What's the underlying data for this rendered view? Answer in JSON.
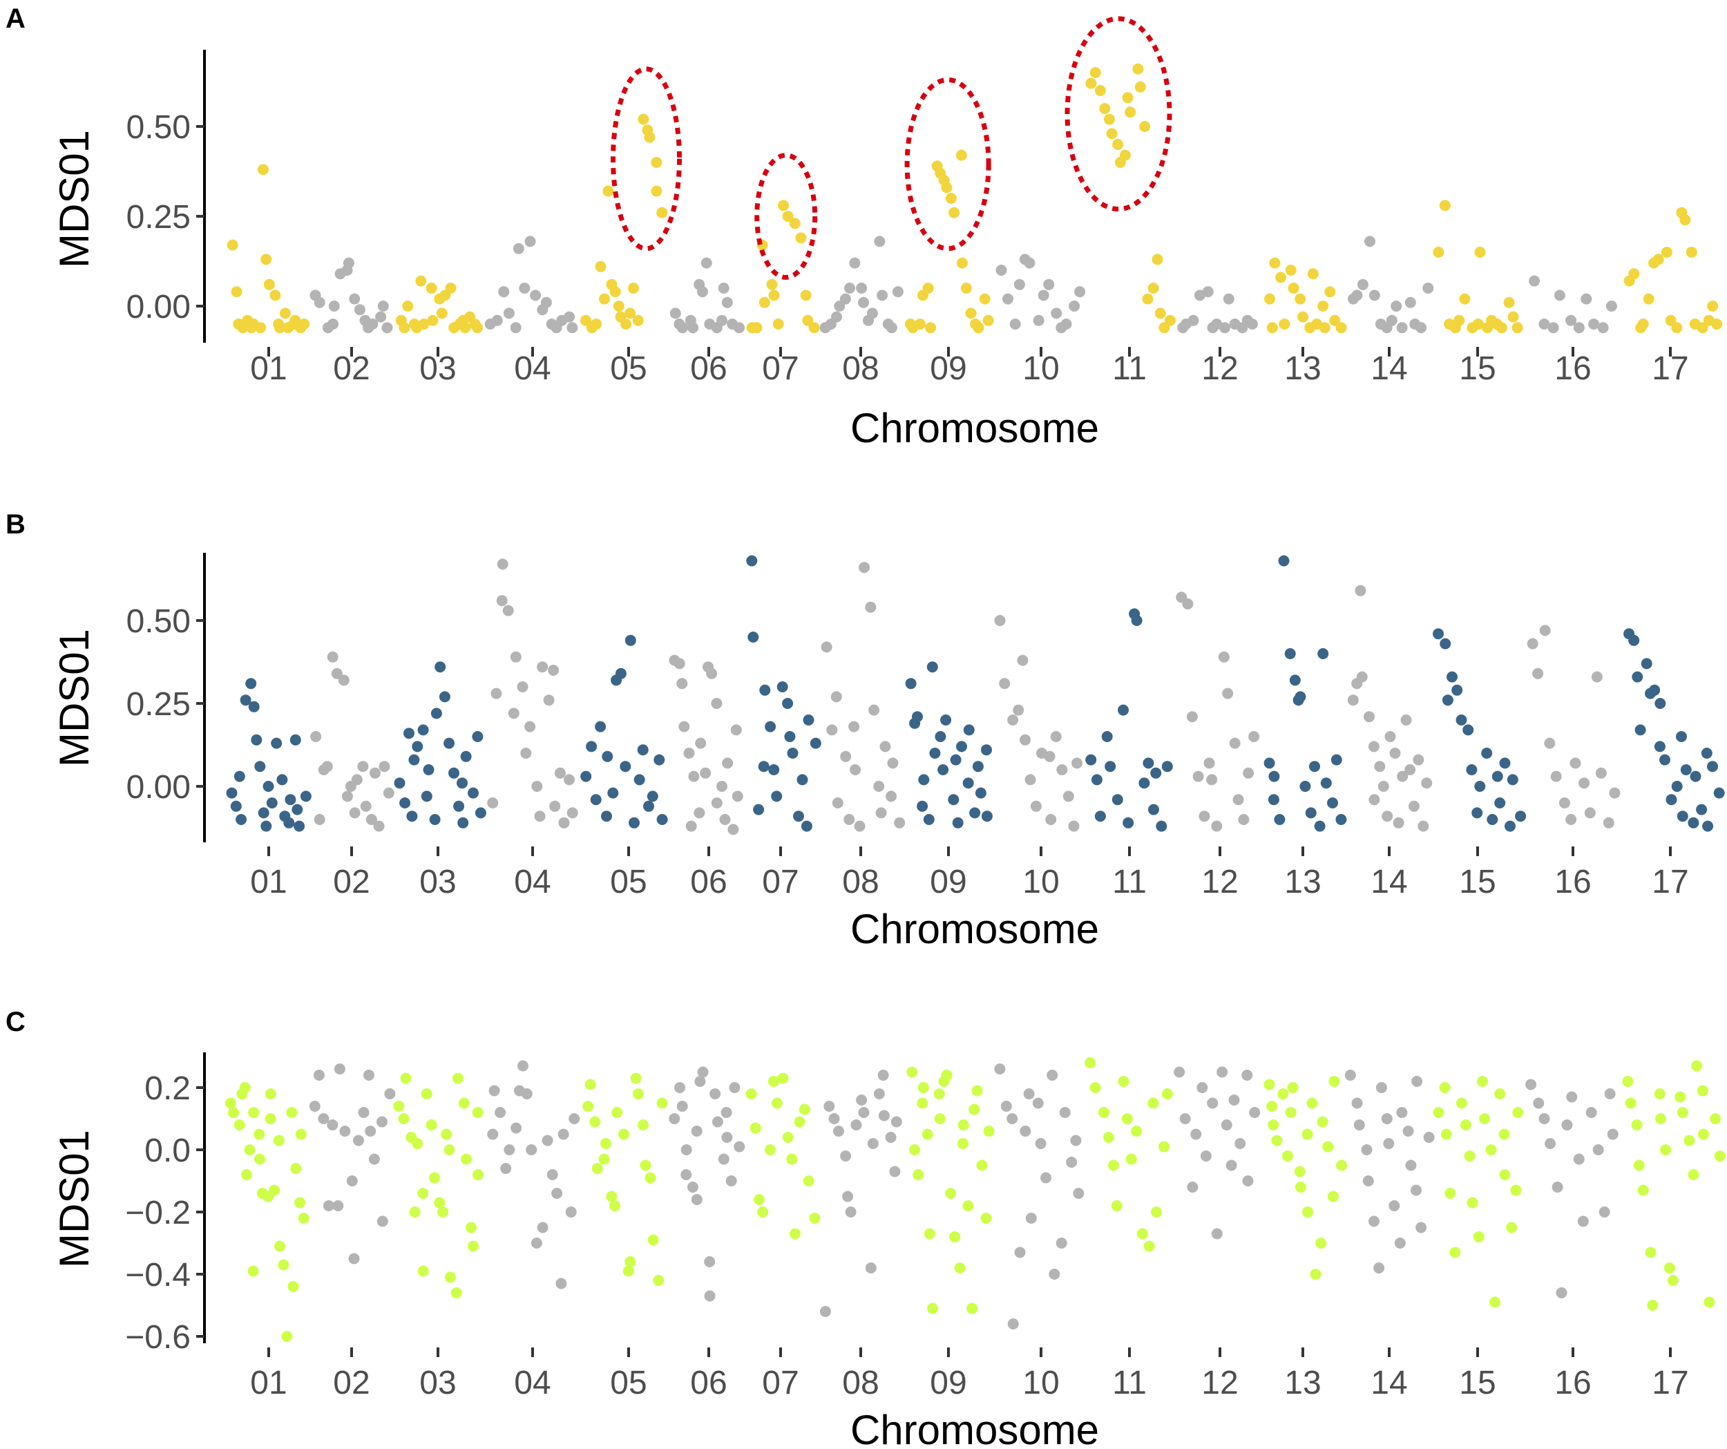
{
  "chart_data": [
    {
      "type": "scatter",
      "panel_label": "A",
      "xlabel": "Chromosome",
      "ylabel": "MDS01",
      "x_categories": [
        "01",
        "02",
        "03",
        "04",
        "05",
        "06",
        "07",
        "08",
        "09",
        "10",
        "11",
        "12",
        "13",
        "14",
        "15",
        "16",
        "17"
      ],
      "yticks": [
        {
          "value": 0.5,
          "label": "0.50"
        },
        {
          "value": 0.25,
          "label": "0.25"
        },
        {
          "value": 0,
          "label": "0.00"
        }
      ],
      "ylim": [
        -0.1,
        0.71
      ],
      "colors": {
        "odd": "#f2d53c",
        "even": "#b3b3b3",
        "annotation": "#d7000f"
      },
      "annotations": [
        {
          "type": "dotted-ellipse",
          "chromosome": "05",
          "ymin": 0.16,
          "ymax": 0.66
        },
        {
          "type": "dotted-ellipse",
          "chromosome": "07",
          "ymin": 0.08,
          "ymax": 0.42
        },
        {
          "type": "dotted-ellipse",
          "chromosome": "09",
          "ymin": 0.16,
          "ymax": 0.63
        },
        {
          "type": "dotted-ellipse",
          "chromosome": "11",
          "ymin": 0.27,
          "ymax": 0.8
        }
      ],
      "values": [
        [
          0.17,
          0.04,
          -0.05,
          -0.06,
          -0.04,
          -0.06,
          -0.05,
          -0.06,
          0.38,
          0.13,
          0.06,
          0.03,
          -0.05,
          -0.06,
          -0.02,
          -0.06,
          -0.05,
          -0.04,
          -0.06,
          -0.05
        ],
        [
          0.03,
          0.01,
          -0.06,
          -0.05,
          0.0,
          0.09,
          0.1,
          0.12,
          0.02,
          -0.01,
          -0.04,
          -0.06,
          -0.05,
          -0.03,
          0.0,
          -0.06
        ],
        [
          -0.04,
          -0.06,
          0.0,
          -0.05,
          -0.06,
          0.07,
          -0.05,
          0.05,
          -0.04,
          0.02,
          -0.02,
          0.03,
          0.05,
          -0.06,
          -0.05,
          -0.04,
          -0.06,
          -0.03,
          -0.05,
          -0.06
        ],
        [
          -0.05,
          -0.04,
          0.04,
          -0.02,
          -0.06,
          0.16,
          0.05,
          0.18,
          0.03,
          -0.01,
          0.01,
          -0.05,
          -0.06,
          -0.04,
          -0.03,
          -0.06
        ],
        [
          -0.04,
          -0.06,
          -0.05,
          0.11,
          0.02,
          0.32,
          0.06,
          0.04,
          0.0,
          -0.03,
          -0.05,
          -0.02,
          0.05,
          -0.04,
          0.52,
          0.49,
          0.47,
          0.4,
          0.32,
          0.26
        ],
        [
          -0.02,
          -0.05,
          -0.06,
          -0.04,
          -0.06,
          0.06,
          0.04,
          0.12,
          -0.05,
          -0.06,
          -0.04,
          0.05,
          0.01,
          -0.05,
          -0.06
        ],
        [
          -0.06,
          -0.06,
          0.17,
          0.01,
          0.06,
          0.03,
          -0.05,
          0.28,
          0.25,
          0.23,
          0.19,
          0.03,
          -0.04,
          -0.06
        ],
        [
          -0.06,
          -0.05,
          -0.03,
          0.0,
          0.02,
          0.05,
          0.12,
          0.05,
          0.01,
          -0.04,
          -0.02,
          0.18,
          0.03,
          -0.05,
          -0.06,
          0.04
        ],
        [
          -0.05,
          -0.06,
          -0.05,
          0.03,
          0.05,
          -0.06,
          0.39,
          0.37,
          0.35,
          0.33,
          0.3,
          0.26,
          0.42,
          0.12,
          0.05,
          -0.02,
          -0.05,
          -0.06,
          0.02,
          -0.04
        ],
        [
          0.1,
          0.02,
          -0.05,
          0.06,
          0.13,
          0.12,
          -0.04,
          0.03,
          0.06,
          -0.02,
          -0.06,
          -0.05,
          0.0,
          0.04
        ],
        [
          0.62,
          0.65,
          0.6,
          0.55,
          0.52,
          0.48,
          0.45,
          0.4,
          0.42,
          0.58,
          0.54,
          0.66,
          0.61,
          0.5,
          0.02,
          0.05,
          0.13,
          -0.02,
          -0.06,
          -0.04
        ],
        [
          -0.06,
          -0.05,
          -0.04,
          0.03,
          0.04,
          -0.06,
          -0.05,
          -0.06,
          0.02,
          -0.05,
          -0.06,
          -0.04,
          -0.05
        ],
        [
          0.02,
          -0.06,
          0.12,
          0.08,
          -0.05,
          0.1,
          0.05,
          0.02,
          -0.03,
          -0.06,
          0.09,
          -0.05,
          0.0,
          -0.06,
          0.04,
          -0.04,
          -0.06
        ],
        [
          0.02,
          0.03,
          0.06,
          0.18,
          0.03,
          -0.05,
          -0.06,
          -0.04,
          0.0,
          -0.06,
          0.01,
          -0.05,
          -0.06,
          0.05
        ],
        [
          0.15,
          0.28,
          -0.05,
          -0.06,
          -0.04,
          0.02,
          -0.06,
          -0.05,
          0.15,
          -0.06,
          -0.04,
          -0.05,
          -0.06,
          0.01,
          -0.03,
          -0.06
        ],
        [
          0.07,
          -0.05,
          -0.06,
          0.03,
          -0.04,
          -0.06,
          0.02,
          -0.05,
          -0.06,
          0.0
        ],
        [
          0.07,
          0.09,
          -0.06,
          -0.05,
          0.02,
          0.12,
          0.13,
          0.15,
          -0.04,
          -0.06,
          0.26,
          0.24,
          0.15,
          -0.05,
          -0.06,
          -0.04,
          0.0,
          -0.05
        ]
      ]
    },
    {
      "type": "scatter",
      "panel_label": "B",
      "xlabel": "Chromosome",
      "ylabel": "MDS01",
      "x_categories": [
        "01",
        "02",
        "03",
        "04",
        "05",
        "06",
        "07",
        "08",
        "09",
        "10",
        "11",
        "12",
        "13",
        "14",
        "15",
        "16",
        "17"
      ],
      "yticks": [
        {
          "value": 0.5,
          "label": "0.50"
        },
        {
          "value": 0.25,
          "label": "0.25"
        },
        {
          "value": 0,
          "label": "0.00"
        }
      ],
      "ylim": [
        -0.17,
        0.7
      ],
      "colors": {
        "odd": "#3a6588",
        "even": "#b3b3b3"
      },
      "annotations": [],
      "values": [
        [
          -0.02,
          -0.06,
          0.03,
          -0.1,
          0.26,
          0.31,
          0.24,
          0.14,
          0.06,
          -0.08,
          -0.12,
          0.0,
          -0.05,
          0.13,
          0.02,
          -0.09,
          -0.11,
          -0.04,
          0.14,
          -0.07,
          -0.12,
          -0.03
        ],
        [
          0.15,
          -0.1,
          0.05,
          0.06,
          0.39,
          0.34,
          0.32,
          -0.03,
          0.0,
          -0.08,
          0.02,
          0.06,
          -0.06,
          -0.1,
          0.04,
          -0.12,
          0.06,
          -0.02
        ],
        [
          0.01,
          -0.05,
          0.16,
          -0.09,
          0.08,
          0.12,
          0.17,
          -0.03,
          0.05,
          -0.1,
          0.22,
          0.36,
          0.27,
          0.13,
          0.04,
          -0.06,
          0.01,
          -0.11,
          0.09,
          -0.02,
          0.15,
          -0.08
        ],
        [
          -0.05,
          0.28,
          0.56,
          0.67,
          0.53,
          0.22,
          0.39,
          0.3,
          0.1,
          0.18,
          0.0,
          -0.09,
          0.36,
          0.26,
          0.35,
          -0.06,
          0.04,
          -0.11,
          0.02,
          -0.08
        ],
        [
          0.03,
          0.12,
          -0.04,
          0.18,
          -0.09,
          0.09,
          -0.02,
          0.32,
          0.34,
          0.06,
          0.44,
          -0.11,
          0.02,
          0.11,
          -0.06,
          -0.03,
          0.08,
          -0.1
        ],
        [
          0.38,
          0.37,
          0.31,
          0.18,
          0.1,
          -0.12,
          0.03,
          -0.08,
          0.13,
          0.04,
          0.36,
          0.34,
          0.25,
          -0.05,
          0.0,
          -0.1,
          0.07,
          -0.13,
          0.17,
          -0.03
        ],
        [
          0.68,
          0.45,
          -0.07,
          0.06,
          0.29,
          0.18,
          0.05,
          -0.03,
          0.3,
          0.25,
          0.15,
          0.1,
          -0.09,
          0.02,
          -0.12,
          0.2,
          0.13
        ],
        [
          0.42,
          0.17,
          0.27,
          -0.05,
          0.09,
          -0.1,
          0.18,
          0.05,
          -0.12,
          0.66,
          0.54,
          0.23,
          0.0,
          -0.08,
          0.12,
          -0.03,
          0.07,
          -0.11
        ],
        [
          0.31,
          0.19,
          0.21,
          -0.06,
          0.02,
          -0.1,
          0.36,
          0.1,
          0.15,
          0.05,
          0.2,
          -0.04,
          0.08,
          -0.11,
          0.12,
          0.01,
          0.17,
          -0.08,
          0.06,
          -0.02,
          0.11,
          -0.09
        ],
        [
          0.5,
          0.31,
          0.2,
          0.23,
          0.38,
          0.14,
          0.02,
          -0.06,
          0.1,
          0.09,
          -0.1,
          0.15,
          0.05,
          -0.03,
          -0.12,
          0.07
        ],
        [
          0.08,
          0.02,
          -0.09,
          0.15,
          0.06,
          -0.04,
          0.23,
          -0.11,
          0.52,
          0.5,
          0.01,
          0.07,
          -0.07,
          0.04,
          -0.12,
          0.06
        ],
        [
          0.57,
          0.55,
          0.21,
          0.03,
          -0.09,
          0.07,
          0.02,
          -0.12,
          0.39,
          0.28,
          0.13,
          -0.04,
          -0.1,
          0.04,
          0.15
        ],
        [
          0.07,
          -0.04,
          0.03,
          -0.1,
          0.68,
          0.4,
          0.32,
          0.26,
          0.27,
          0.0,
          -0.08,
          0.06,
          -0.12,
          0.4,
          0.01,
          -0.05,
          0.08,
          -0.1
        ],
        [
          0.26,
          0.31,
          0.59,
          0.33,
          0.21,
          0.12,
          -0.04,
          0.06,
          0.0,
          -0.09,
          0.15,
          0.1,
          -0.11,
          0.03,
          0.2,
          0.05,
          -0.06,
          0.08,
          -0.12,
          0.01
        ],
        [
          0.46,
          0.43,
          0.26,
          0.33,
          0.29,
          0.2,
          0.17,
          0.05,
          -0.08,
          0.0,
          0.1,
          -0.1,
          0.03,
          -0.05,
          0.07,
          -0.12,
          0.02,
          -0.09
        ],
        [
          0.43,
          0.34,
          0.47,
          0.13,
          0.03,
          -0.05,
          -0.1,
          0.07,
          0.01,
          -0.08,
          0.33,
          0.04,
          -0.11,
          -0.02
        ],
        [
          0.46,
          0.44,
          0.33,
          0.17,
          0.37,
          0.28,
          0.29,
          0.12,
          0.25,
          0.08,
          -0.04,
          0.0,
          0.15,
          -0.09,
          0.05,
          -0.11,
          0.03,
          -0.07,
          0.1,
          -0.12,
          0.06,
          -0.02
        ]
      ]
    },
    {
      "type": "scatter",
      "panel_label": "C",
      "xlabel": "Chromosome",
      "ylabel": "MDS01",
      "x_categories": [
        "01",
        "02",
        "03",
        "04",
        "05",
        "06",
        "07",
        "08",
        "09",
        "10",
        "11",
        "12",
        "13",
        "14",
        "15",
        "16",
        "17"
      ],
      "yticks": [
        {
          "value": 0.2,
          "label": "0.2"
        },
        {
          "value": 0,
          "label": "0.0"
        },
        {
          "value": -0.2,
          "label": "−0.2"
        },
        {
          "value": -0.4,
          "label": "−0.4"
        },
        {
          "value": -0.6,
          "label": "−0.6"
        }
      ],
      "ylim": [
        -0.62,
        0.31
      ],
      "colors": {
        "odd": "#cdff47",
        "even": "#b3b3b3"
      },
      "annotations": [],
      "values": [
        [
          0.15,
          0.12,
          0.08,
          0.18,
          0.2,
          -0.08,
          0.0,
          -0.39,
          0.12,
          0.05,
          -0.03,
          -0.14,
          -0.15,
          0.1,
          0.18,
          -0.13,
          0.03,
          -0.31,
          -0.37,
          -0.6,
          0.12,
          -0.44,
          -0.06,
          -0.17,
          0.05,
          -0.22
        ],
        [
          0.14,
          0.24,
          0.1,
          -0.18,
          0.08,
          -0.18,
          0.26,
          0.06,
          -0.1,
          -0.35,
          0.03,
          0.12,
          0.24,
          0.06,
          -0.03,
          0.09,
          -0.23,
          0.18
        ],
        [
          0.14,
          0.1,
          0.23,
          0.04,
          -0.2,
          0.02,
          -0.14,
          -0.39,
          0.18,
          0.08,
          -0.09,
          -0.17,
          -0.2,
          0.05,
          0.0,
          -0.41,
          -0.46,
          0.23,
          0.15,
          -0.03,
          -0.25,
          -0.31,
          0.12,
          -0.08
        ],
        [
          0.05,
          0.19,
          0.12,
          -0.06,
          0.0,
          0.07,
          0.19,
          0.27,
          0.18,
          0.0,
          -0.3,
          -0.25,
          0.03,
          -0.08,
          -0.14,
          -0.43,
          0.05,
          -0.2,
          0.1
        ],
        [
          0.14,
          0.21,
          0.09,
          -0.06,
          -0.03,
          0.02,
          -0.15,
          -0.18,
          0.12,
          0.05,
          -0.39,
          -0.36,
          0.23,
          0.18,
          0.08,
          -0.05,
          -0.09,
          -0.29,
          -0.42,
          0.15
        ],
        [
          0.1,
          0.2,
          0.14,
          0.0,
          -0.08,
          -0.12,
          0.06,
          -0.16,
          0.22,
          0.25,
          -0.36,
          -0.47,
          0.18,
          0.09,
          -0.03,
          0.12,
          0.04,
          -0.1,
          0.2,
          0.01
        ],
        [
          0.18,
          0.07,
          -0.16,
          -0.2,
          0.0,
          0.22,
          0.15,
          0.23,
          0.04,
          -0.03,
          -0.27,
          0.09,
          0.13,
          -0.1,
          -0.22
        ],
        [
          -0.52,
          0.14,
          0.1,
          0.06,
          -0.02,
          -0.15,
          -0.2,
          0.08,
          0.16,
          0.12,
          -0.38,
          0.02,
          0.18,
          0.24,
          0.11,
          0.04,
          -0.07,
          0.09
        ],
        [
          0.25,
          0.0,
          -0.08,
          0.15,
          0.2,
          0.05,
          -0.27,
          -0.51,
          0.18,
          0.1,
          0.22,
          0.24,
          -0.14,
          -0.28,
          -0.38,
          0.08,
          0.02,
          -0.18,
          -0.51,
          0.13,
          0.19,
          -0.05,
          -0.22,
          0.06
        ],
        [
          0.26,
          0.14,
          0.1,
          -0.56,
          -0.33,
          0.06,
          0.18,
          -0.22,
          0.15,
          0.02,
          -0.09,
          0.24,
          -0.4,
          -0.3,
          0.12,
          -0.04,
          0.03,
          -0.14
        ],
        [
          0.28,
          0.2,
          0.12,
          0.04,
          -0.05,
          -0.18,
          0.22,
          0.1,
          -0.03,
          0.06,
          -0.27,
          -0.31,
          0.15,
          -0.2,
          0.01,
          0.18
        ],
        [
          0.25,
          0.1,
          -0.12,
          0.05,
          0.2,
          -0.02,
          0.15,
          -0.27,
          0.25,
          0.08,
          -0.05,
          0.16,
          0.02,
          0.24,
          -0.1,
          0.12
        ],
        [
          0.21,
          0.14,
          0.08,
          0.03,
          0.18,
          -0.02,
          0.12,
          0.2,
          -0.07,
          -0.12,
          0.05,
          -0.2,
          0.15,
          -0.4,
          -0.3,
          0.09,
          0.01,
          -0.15,
          0.22,
          -0.05
        ],
        [
          0.24,
          0.15,
          0.08,
          0.0,
          -0.1,
          -0.23,
          -0.38,
          0.2,
          0.1,
          0.02,
          -0.18,
          -0.3,
          0.12,
          0.06,
          -0.05,
          -0.13,
          0.22,
          -0.25,
          0.04
        ],
        [
          0.12,
          0.2,
          0.05,
          -0.14,
          -0.33,
          0.15,
          0.08,
          -0.02,
          -0.17,
          -0.28,
          0.22,
          0.1,
          0.0,
          -0.49,
          0.18,
          0.05,
          -0.08,
          -0.25,
          -0.13,
          0.12
        ],
        [
          0.21,
          0.15,
          0.1,
          0.02,
          -0.12,
          -0.46,
          0.08,
          0.17,
          -0.03,
          -0.23,
          0.12,
          0.0,
          -0.2,
          0.18,
          0.05
        ],
        [
          0.22,
          0.15,
          0.08,
          -0.05,
          -0.13,
          -0.33,
          -0.5,
          0.18,
          0.1,
          0.0,
          -0.38,
          -0.42,
          0.17,
          0.12,
          0.03,
          -0.08,
          0.27,
          0.19,
          0.05,
          -0.49,
          0.1,
          -0.02
        ]
      ]
    }
  ]
}
